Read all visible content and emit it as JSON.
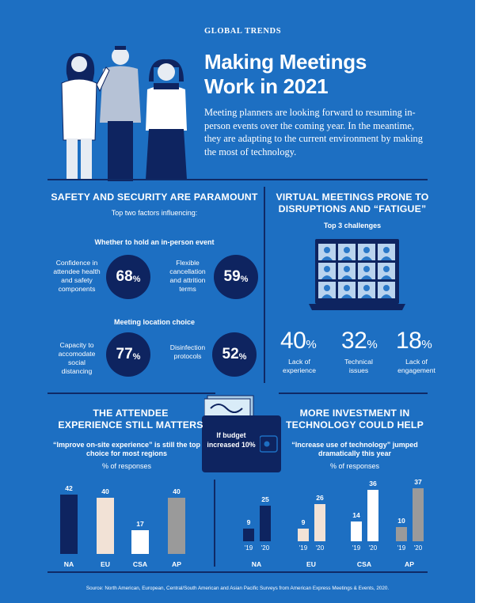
{
  "header": {
    "kicker": "GLOBAL TRENDS",
    "title_line1": "Making Meetings",
    "title_line2": "Work in 2021",
    "intro": "Meeting planners are looking forward to resuming in-person events over the coming year. In the meantime, they are adapting to the current environment by making the most of technology."
  },
  "safety": {
    "title": "SAFETY AND SECURITY ARE PARAMOUNT",
    "subtitle": "Top two factors influencing:",
    "group1_title": "Whether to hold an in-person event",
    "group1": [
      {
        "label": "Confidence in attendee health and safety components",
        "value": "68",
        "unit": "%"
      },
      {
        "label": "Flexible cancellation and attrition terms",
        "value": "59",
        "unit": "%"
      }
    ],
    "group2_title": "Meeting location choice",
    "group2": [
      {
        "label": "Capacity to accomodate social distancing",
        "value": "77",
        "unit": "%"
      },
      {
        "label": "Disinfection protocols",
        "value": "52",
        "unit": "%"
      }
    ]
  },
  "virtual": {
    "title_line1": "VIRTUAL MEETINGS PRONE TO",
    "title_line2": "DISRUPTIONS AND “FATIGUE”",
    "subtitle": "Top 3 challenges",
    "stats": [
      {
        "value": "40",
        "unit": "%",
        "label": "Lack of experience"
      },
      {
        "value": "32",
        "unit": "%",
        "label": "Technical issues"
      },
      {
        "value": "18",
        "unit": "%",
        "label": "Lack of engagement"
      }
    ],
    "icon": "laptop-video-grid-icon"
  },
  "attendee": {
    "title_line1": "THE ATTENDEE",
    "title_line2": "EXPERIENCE STILL MATTERS",
    "quote": "“Improve on-site experience” is still the top choice for most regions",
    "unit_note": "% of responses"
  },
  "investment": {
    "title_line1": "MORE INVESTMENT IN",
    "title_line2": "TECHNOLOGY COULD HELP",
    "quote": "“Increase use of technology” jumped dramatically this year",
    "unit_note": "% of responses"
  },
  "wallet": {
    "text": "If budget increased 10%",
    "icon": "wallet-icon"
  },
  "colors": {
    "background": "#1d6fc2",
    "navy": "#0e2460",
    "beige": "#f2e2d6",
    "gray": "#9a9a9a",
    "white": "#ffffff"
  },
  "chart_data": [
    {
      "type": "bar",
      "categories": [
        "NA",
        "EU",
        "CSA",
        "AP"
      ],
      "values": [
        42,
        40,
        17,
        40
      ],
      "ylim": [
        0,
        45
      ]
    },
    {
      "type": "bar",
      "categories": [
        "NA",
        "EU",
        "CSA",
        "AP"
      ],
      "x": [
        "'19",
        "'20"
      ],
      "series": [
        {
          "values": [
            9,
            9,
            14,
            10
          ]
        },
        {
          "values": [
            25,
            26,
            36,
            37
          ]
        }
      ],
      "ylim": [
        0,
        40
      ]
    }
  ],
  "source": "Source: North American, European, Central/South American and Asian Pacific Surveys from American Express Meetings & Events, 2020."
}
